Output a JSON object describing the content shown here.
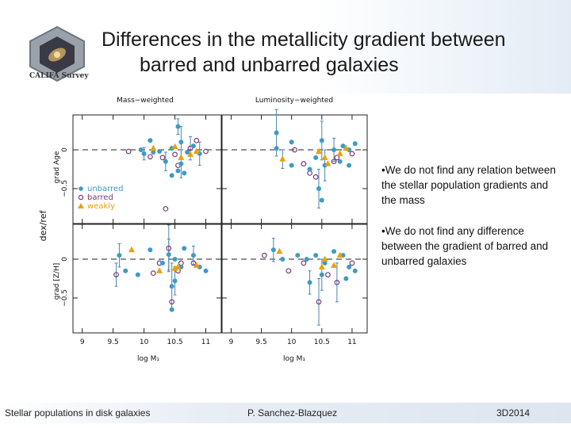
{
  "slide": {
    "title_line1": "Differences in the metallicity gradient between",
    "title_line2": "barred and unbarred galaxies",
    "logo_text": "CALIFA Survey",
    "bullets": [
      "•We do not find any relation between the stellar population gradients and the mass",
      "•We do not find any difference between the gradient of barred and unbarred galaxies"
    ],
    "footer": {
      "left": "Stellar populations in disk galaxies",
      "center": "P. Sanchez-Blazquez",
      "right": "3D2014"
    }
  },
  "chart_data": {
    "type": "scatter",
    "column_titles": [
      "Mass−weighted",
      "Luminosity−weighted"
    ],
    "outer_ylabel": "dex/ref",
    "row_ylabels": [
      "grad Age",
      "grad [Z/H]"
    ],
    "xlabel": "log M₁",
    "xlim": [
      8.85,
      11.25
    ],
    "ylim": [
      -0.95,
      0.45
    ],
    "xticks": [
      9,
      9.5,
      10,
      10.5,
      11
    ],
    "xtick_labels": [
      "9",
      "9.5",
      "10",
      "10.5",
      "11"
    ],
    "yticks": [
      0,
      -0.5
    ],
    "ytick_labels": [
      "0",
      "−0.5"
    ],
    "reference_line_y": 0,
    "legend": {
      "location": "bottom-left of top-left panel",
      "entries": [
        {
          "label": "unbarred",
          "marker": "filled circle",
          "color": "#3d9bc6"
        },
        {
          "label": "barred",
          "marker": "open circle",
          "color": "#7b3c78"
        },
        {
          "label": "weakly",
          "marker": "triangle",
          "color": "#e8a10e"
        }
      ]
    },
    "colors": {
      "unbarred": "#3d9bc6",
      "barred": "#7b3c78",
      "weakly": "#e8a10e"
    },
    "panels": [
      {
        "name": "mass-weighted-age",
        "unbarred": [
          [
            10.55,
            0.3
          ],
          [
            10.1,
            0.12
          ],
          [
            10.6,
            0.1
          ],
          [
            9.95,
            0.0
          ],
          [
            10.25,
            -0.02
          ],
          [
            10.45,
            0.02
          ],
          [
            10.7,
            -0.03
          ],
          [
            10.9,
            -0.05
          ],
          [
            10.35,
            -0.15
          ],
          [
            10.6,
            -0.18
          ],
          [
            10.55,
            -0.27
          ],
          [
            10.45,
            -0.33
          ],
          [
            10.65,
            -0.3
          ],
          [
            10.8,
            0.05
          ],
          [
            10.15,
            -0.03
          ],
          [
            10.0,
            -0.05
          ]
        ],
        "barred": [
          [
            9.75,
            -0.02
          ],
          [
            10.55,
            -0.2
          ],
          [
            10.3,
            -0.1
          ],
          [
            11.0,
            -0.02
          ],
          [
            10.75,
            0.02
          ],
          [
            10.5,
            -0.06
          ],
          [
            10.35,
            -0.76
          ],
          [
            10.85,
            0.12
          ],
          [
            10.1,
            -0.09
          ]
        ],
        "weakly": [
          [
            10.15,
            0.02
          ],
          [
            10.75,
            -0.06
          ],
          [
            10.5,
            0.04
          ],
          [
            10.6,
            -0.1
          ],
          [
            10.85,
            -0.02
          ]
        ],
        "errors": [
          [
            10.55,
            0.3,
            0.1
          ],
          [
            10.6,
            0.1,
            0.2
          ],
          [
            10.75,
            0.02,
            0.15
          ],
          [
            10.35,
            -0.15,
            0.12
          ],
          [
            10.6,
            -0.18,
            0.18
          ],
          [
            10.9,
            -0.05,
            0.15
          ],
          [
            10.0,
            -0.05,
            0.08
          ]
        ]
      },
      {
        "name": "luminosity-weighted-age",
        "unbarred": [
          [
            9.75,
            0.22
          ],
          [
            10.0,
            0.1
          ],
          [
            10.5,
            0.12
          ],
          [
            10.7,
            0.0
          ],
          [
            10.85,
            0.05
          ],
          [
            10.95,
            0.0
          ],
          [
            11.05,
            0.08
          ],
          [
            10.55,
            -0.2
          ],
          [
            10.4,
            -0.1
          ],
          [
            10.45,
            -0.5
          ],
          [
            10.5,
            -0.65
          ],
          [
            10.3,
            -0.25
          ],
          [
            9.75,
            0.02
          ],
          [
            10.95,
            -0.2
          ],
          [
            10.8,
            -0.15
          ],
          [
            10.0,
            -0.2
          ]
        ],
        "barred": [
          [
            10.2,
            -0.18
          ],
          [
            10.05,
            0.0
          ],
          [
            10.3,
            -0.3
          ],
          [
            10.75,
            -0.1
          ],
          [
            10.4,
            -0.35
          ],
          [
            11.0,
            -0.05
          ],
          [
            10.7,
            -0.15
          ]
        ],
        "weakly": [
          [
            9.85,
            -0.12
          ],
          [
            10.55,
            -0.1
          ],
          [
            10.6,
            -0.18
          ],
          [
            10.8,
            -0.05
          ],
          [
            10.9,
            0.02
          ],
          [
            10.45,
            -0.02
          ]
        ],
        "errors": [
          [
            9.75,
            0.22,
            0.3
          ],
          [
            10.5,
            0.12,
            0.25
          ],
          [
            10.55,
            -0.2,
            0.2
          ],
          [
            10.45,
            -0.5,
            0.25
          ],
          [
            9.85,
            -0.12,
            0.12
          ],
          [
            10.7,
            0.0,
            0.15
          ]
        ]
      },
      {
        "name": "mass-weighted-metallicity",
        "unbarred": [
          [
            9.6,
            0.05
          ],
          [
            10.1,
            0.12
          ],
          [
            10.4,
            0.06
          ],
          [
            10.5,
            0.0
          ],
          [
            10.8,
            0.05
          ],
          [
            10.3,
            -0.05
          ],
          [
            10.6,
            -0.1
          ],
          [
            10.5,
            -0.28
          ],
          [
            10.45,
            -0.35
          ],
          [
            10.45,
            -0.65
          ],
          [
            9.9,
            -0.2
          ],
          [
            9.7,
            -0.15
          ],
          [
            10.9,
            -0.1
          ],
          [
            11.0,
            -0.15
          ],
          [
            10.65,
            0.14
          ]
        ],
        "barred": [
          [
            9.55,
            -0.2
          ],
          [
            10.25,
            -0.05
          ],
          [
            10.4,
            0.14
          ],
          [
            10.55,
            -0.15
          ],
          [
            10.45,
            -0.55
          ],
          [
            10.8,
            -0.05
          ],
          [
            10.15,
            -0.18
          ],
          [
            10.6,
            -0.05
          ]
        ],
        "weakly": [
          [
            9.8,
            0.12
          ],
          [
            10.5,
            -0.12
          ],
          [
            10.55,
            -0.1
          ],
          [
            10.25,
            -0.15
          ],
          [
            10.85,
            -0.08
          ]
        ],
        "errors": [
          [
            9.6,
            0.05,
            0.15
          ],
          [
            10.4,
            0.06,
            0.2
          ],
          [
            10.45,
            -0.35,
            0.3
          ],
          [
            9.55,
            -0.2,
            0.15
          ],
          [
            10.4,
            0.14,
            0.3
          ],
          [
            10.5,
            -0.28,
            0.18
          ],
          [
            10.8,
            0.05,
            0.12
          ]
        ]
      },
      {
        "name": "luminosity-weighted-metallicity",
        "unbarred": [
          [
            9.7,
            0.12
          ],
          [
            9.85,
            0.0
          ],
          [
            10.1,
            0.05
          ],
          [
            10.25,
            0.0
          ],
          [
            10.4,
            0.05
          ],
          [
            10.55,
            -0.05
          ],
          [
            10.7,
            0.1
          ],
          [
            10.85,
            0.05
          ],
          [
            10.95,
            -0.1
          ],
          [
            11.05,
            -0.15
          ],
          [
            10.5,
            -0.2
          ],
          [
            10.3,
            -0.3
          ],
          [
            10.9,
            -0.25
          ]
        ],
        "barred": [
          [
            9.55,
            0.05
          ],
          [
            9.95,
            -0.15
          ],
          [
            10.2,
            -0.05
          ],
          [
            10.45,
            -0.55
          ],
          [
            10.75,
            -0.3
          ],
          [
            10.6,
            -0.2
          ],
          [
            11.0,
            -0.05
          ]
        ],
        "weakly": [
          [
            9.8,
            0.1
          ],
          [
            10.5,
            -0.1
          ],
          [
            10.55,
            0.0
          ],
          [
            10.7,
            -0.08
          ],
          [
            10.8,
            0.05
          ]
        ],
        "errors": [
          [
            9.7,
            0.12,
            0.15
          ],
          [
            10.45,
            -0.55,
            0.3
          ],
          [
            10.75,
            -0.3,
            0.25
          ],
          [
            10.5,
            -0.2,
            0.2
          ],
          [
            10.3,
            -0.3,
            0.15
          ]
        ]
      }
    ]
  }
}
